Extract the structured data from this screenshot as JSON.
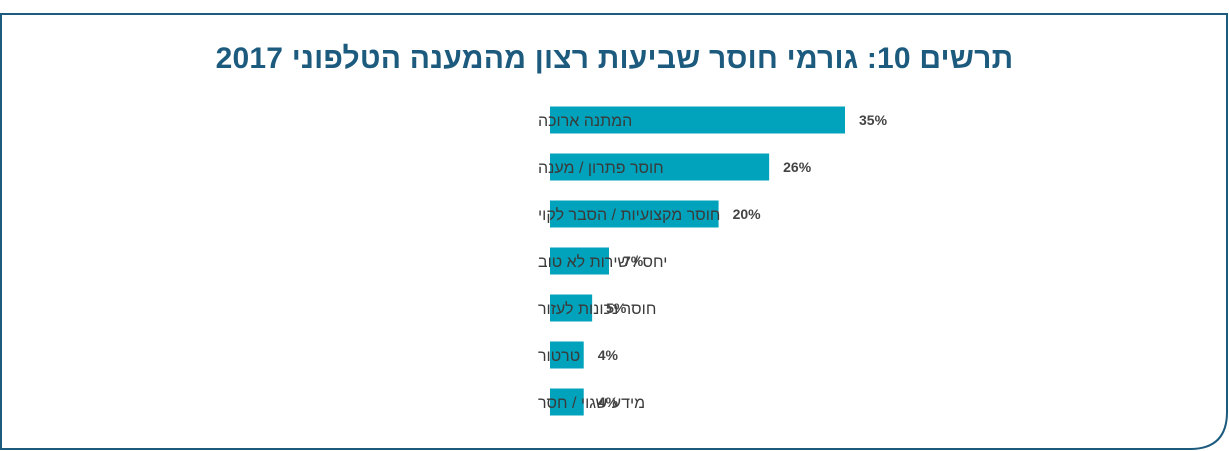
{
  "chart_data": {
    "type": "bar",
    "orientation": "horizontal",
    "title": "תרשים 10: גורמי חוסר שביעות רצון מהמענה הטלפוני 2017",
    "categories": [
      "המתנה ארוכה",
      "חוסר פתרון / מענה",
      "חוסר מקצועיות / הסבר לקוי",
      "יחס / שירות לא טוב",
      "חוסר נכונות לעזור",
      "טרטור",
      "מידע שגוי / חסר"
    ],
    "values": [
      35,
      26,
      20,
      7,
      5,
      4,
      4
    ],
    "value_labels": [
      "35%",
      "26%",
      "20%",
      "7%",
      "5%",
      "4%",
      "4%"
    ],
    "unit": "%",
    "xlim": [
      0,
      35
    ],
    "grid": false,
    "legend": "none"
  },
  "colors": {
    "bar": "#00a3bb",
    "title": "#1c5a7e",
    "frame": "#1c5a7e",
    "text": "#3a3a3a"
  }
}
